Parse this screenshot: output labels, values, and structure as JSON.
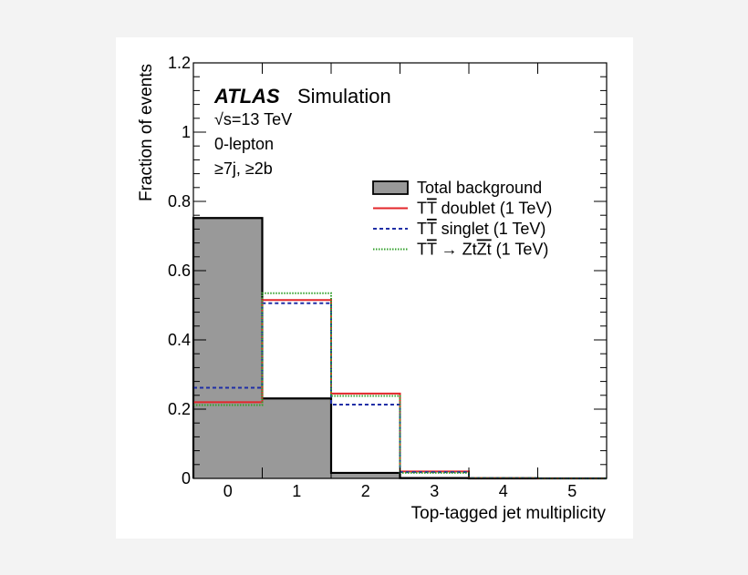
{
  "chart_data": {
    "type": "histogram",
    "xlabel": "Top-tagged jet multiplicity",
    "ylabel": "Fraction of events",
    "xlim": [
      -0.5,
      5.5
    ],
    "ylim": [
      0,
      1.2
    ],
    "x_ticks": [
      "0",
      "1",
      "2",
      "3",
      "4",
      "5"
    ],
    "y_ticks": [
      "0",
      "0.2",
      "0.4",
      "0.6",
      "0.8",
      "1",
      "1.2"
    ],
    "bin_centers": [
      0,
      1,
      2,
      3,
      4,
      5
    ],
    "series": [
      {
        "name": "Total background",
        "style": "filled",
        "color": "#999999",
        "edge": "#000000",
        "values": [
          0.752,
          0.231,
          0.016,
          0.001,
          0.0,
          0.0
        ]
      },
      {
        "name": "TT̄ doublet (1 TeV)",
        "style": "solid",
        "color": "#e3262a",
        "values": [
          0.22,
          0.515,
          0.245,
          0.02,
          0.001,
          0.0
        ]
      },
      {
        "name": "TT̄ singlet (1 TeV)",
        "style": "dashed",
        "color": "#1f2ea6",
        "values": [
          0.262,
          0.506,
          0.213,
          0.018,
          0.001,
          0.0
        ]
      },
      {
        "name": "TT̄ → Zt̄Zt̄ (1 TeV)",
        "style": "dotted",
        "color": "#33a02c",
        "values": [
          0.212,
          0.535,
          0.238,
          0.016,
          0.001,
          0.0
        ]
      }
    ],
    "legend_position": "upper-right"
  },
  "annotations": {
    "experiment": "ATLAS",
    "label": "Simulation",
    "energy": "√s=13 TeV",
    "channel": "0-lepton",
    "selection": "≥7j, ≥2b"
  },
  "legend": [
    {
      "parts": [
        {
          "t": "Total background"
        }
      ]
    },
    {
      "parts": [
        {
          "t": "T"
        },
        {
          "t": "T",
          "over": true
        },
        {
          "t": " doublet (1 TeV)"
        }
      ]
    },
    {
      "parts": [
        {
          "t": "T"
        },
        {
          "t": "T",
          "over": true
        },
        {
          "t": " singlet (1 TeV)"
        }
      ]
    },
    {
      "parts": [
        {
          "t": "T"
        },
        {
          "t": "T",
          "over": true
        },
        {
          "t": " → Zt"
        },
        {
          "t": "Zt",
          "over": true
        },
        {
          "t": " (1 TeV)"
        }
      ]
    }
  ]
}
